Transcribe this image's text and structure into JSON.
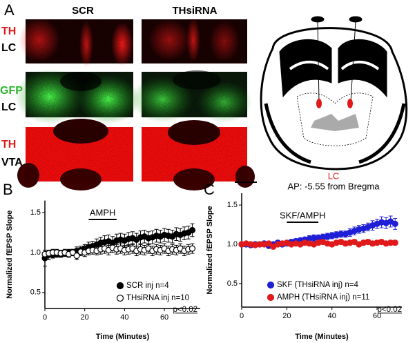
{
  "figure": {
    "panel_labels": [
      "A",
      "B",
      "C"
    ],
    "column_titles": [
      "SCR",
      "THsiRNA"
    ],
    "row_labels": [
      [
        "TH",
        "LC"
      ],
      [
        "GFP",
        "LC"
      ],
      [
        "TH",
        "VTA"
      ]
    ],
    "region_label": "LC",
    "coordinate": "AP: -5.55 from Bregma"
  },
  "chart_data": [
    {
      "type": "scatter",
      "ylabel": "Normalized fEPSP Slope",
      "xlabel": "Time (Minutes)",
      "xlim": [
        0,
        78
      ],
      "ylim": [
        0.3,
        1.65
      ],
      "xticks": [
        0,
        20,
        40,
        60
      ],
      "yticks": [
        {
          "value": 0.5,
          "label": "0.5"
        },
        {
          "value": 1.0,
          "label": "1.0"
        },
        {
          "value": 1.5,
          "label": "1.5"
        }
      ],
      "treatment": {
        "label": "AMPH",
        "start": 22,
        "end": 36
      },
      "annotation": "p<0.02",
      "legend": "lower right",
      "x": [
        0,
        2,
        4,
        6,
        8,
        10,
        12,
        14,
        16,
        18,
        20,
        22,
        24,
        26,
        28,
        30,
        32,
        34,
        36,
        38,
        40,
        42,
        44,
        46,
        48,
        50,
        52,
        54,
        56,
        58,
        60,
        62,
        64,
        66,
        68,
        70,
        72,
        74
      ],
      "series": [
        {
          "name": "SCR inj n=4",
          "color": "#000000",
          "marker_fill": "#000000",
          "values": [
            0.93,
            0.97,
            0.97,
            0.98,
            0.98,
            0.99,
            1.0,
            1.0,
            1.02,
            1.03,
            1.05,
            1.07,
            1.08,
            1.1,
            1.12,
            1.13,
            1.14,
            1.12,
            1.15,
            1.16,
            1.15,
            1.17,
            1.18,
            1.16,
            1.19,
            1.2,
            1.18,
            1.19,
            1.21,
            1.2,
            1.22,
            1.21,
            1.2,
            1.23,
            1.22,
            1.24,
            1.25,
            1.28
          ],
          "errors": [
            0.1,
            0.06,
            0.04,
            0.04,
            0.04,
            0.04,
            0.04,
            0.04,
            0.05,
            0.05,
            0.05,
            0.06,
            0.06,
            0.07,
            0.07,
            0.08,
            0.08,
            0.08,
            0.08,
            0.08,
            0.08,
            0.08,
            0.08,
            0.08,
            0.08,
            0.08,
            0.08,
            0.08,
            0.08,
            0.08,
            0.08,
            0.08,
            0.08,
            0.08,
            0.08,
            0.08,
            0.08,
            0.08
          ]
        },
        {
          "name": "THsiRNA inj n=10",
          "color": "#000000",
          "marker_fill": "#ffffff",
          "values": [
            0.98,
            0.99,
            1.0,
            1.0,
            0.99,
            1.0,
            0.98,
            1.0,
            0.96,
            1.01,
            1.0,
            1.02,
            1.03,
            1.02,
            1.04,
            1.05,
            1.03,
            1.06,
            1.04,
            1.05,
            1.03,
            1.04,
            1.05,
            1.02,
            1.04,
            1.03,
            1.05,
            1.02,
            1.04,
            1.03,
            1.05,
            1.02,
            1.04,
            1.03,
            1.05,
            1.02,
            1.04,
            1.05
          ],
          "errors": [
            0.05,
            0.04,
            0.04,
            0.04,
            0.04,
            0.04,
            0.04,
            0.04,
            0.05,
            0.05,
            0.05,
            0.05,
            0.05,
            0.05,
            0.06,
            0.06,
            0.06,
            0.06,
            0.06,
            0.06,
            0.06,
            0.06,
            0.06,
            0.06,
            0.06,
            0.06,
            0.06,
            0.06,
            0.06,
            0.06,
            0.06,
            0.06,
            0.06,
            0.06,
            0.06,
            0.06,
            0.06,
            0.06
          ]
        }
      ]
    },
    {
      "type": "scatter",
      "ylabel": "Normalized fEPSP Slope",
      "xlabel": "Time (Minutes)",
      "xlim": [
        0,
        71
      ],
      "ylim": [
        0.2,
        1.65
      ],
      "xticks": [
        0,
        20,
        40,
        60
      ],
      "yticks": [
        {
          "value": 0.5,
          "label": "0.5"
        },
        {
          "value": 1.0,
          "label": "1.0"
        },
        {
          "value": 1.5,
          "label": "1.5"
        }
      ],
      "treatment": {
        "label": "SKF/AMPH",
        "start": 20,
        "end": 34
      },
      "annotation": "p<0.02",
      "legend": "lower right",
      "x": [
        0,
        2,
        4,
        6,
        8,
        10,
        12,
        14,
        16,
        18,
        20,
        22,
        24,
        26,
        28,
        30,
        32,
        34,
        36,
        38,
        40,
        42,
        44,
        46,
        48,
        50,
        52,
        54,
        56,
        58,
        60,
        62,
        64,
        66,
        68
      ],
      "series": [
        {
          "name": "SKF (THsiRNA inj) n=4",
          "color": "#1f1fd6",
          "marker_fill": "#1f1fd6",
          "values": [
            1.0,
            1.0,
            0.99,
            1.0,
            1.0,
            1.01,
            0.98,
            1.0,
            1.02,
            1.0,
            1.01,
            1.03,
            1.04,
            1.05,
            1.06,
            1.07,
            1.08,
            1.08,
            1.09,
            1.1,
            1.11,
            1.12,
            1.13,
            1.13,
            1.15,
            1.17,
            1.19,
            1.2,
            1.22,
            1.24,
            1.26,
            1.28,
            1.27,
            1.29,
            1.26
          ],
          "errors": [
            0.03,
            0.03,
            0.03,
            0.03,
            0.03,
            0.03,
            0.03,
            0.03,
            0.03,
            0.03,
            0.03,
            0.03,
            0.03,
            0.03,
            0.03,
            0.04,
            0.04,
            0.04,
            0.04,
            0.04,
            0.04,
            0.04,
            0.04,
            0.04,
            0.05,
            0.05,
            0.05,
            0.05,
            0.05,
            0.06,
            0.06,
            0.07,
            0.07,
            0.07,
            0.07
          ]
        },
        {
          "name": "AMPH (THsiRNA inj) n=11",
          "color": "#e01a1a",
          "marker_fill": "#e01a1a",
          "values": [
            1.0,
            1.01,
            1.0,
            0.99,
            1.0,
            1.0,
            1.01,
            0.97,
            1.0,
            1.01,
            1.02,
            1.0,
            1.01,
            1.0,
            1.02,
            1.01,
            1.0,
            1.02,
            1.03,
            1.01,
            1.0,
            1.02,
            1.03,
            1.01,
            1.02,
            1.03,
            1.0,
            1.02,
            1.03,
            1.01,
            1.02,
            1.03,
            1.01,
            1.02,
            1.02
          ],
          "errors": [
            0.02,
            0.02,
            0.02,
            0.02,
            0.02,
            0.02,
            0.02,
            0.03,
            0.02,
            0.02,
            0.02,
            0.02,
            0.02,
            0.02,
            0.02,
            0.02,
            0.02,
            0.02,
            0.03,
            0.03,
            0.03,
            0.03,
            0.03,
            0.03,
            0.03,
            0.03,
            0.03,
            0.03,
            0.03,
            0.03,
            0.03,
            0.03,
            0.03,
            0.03,
            0.03
          ]
        }
      ]
    }
  ]
}
